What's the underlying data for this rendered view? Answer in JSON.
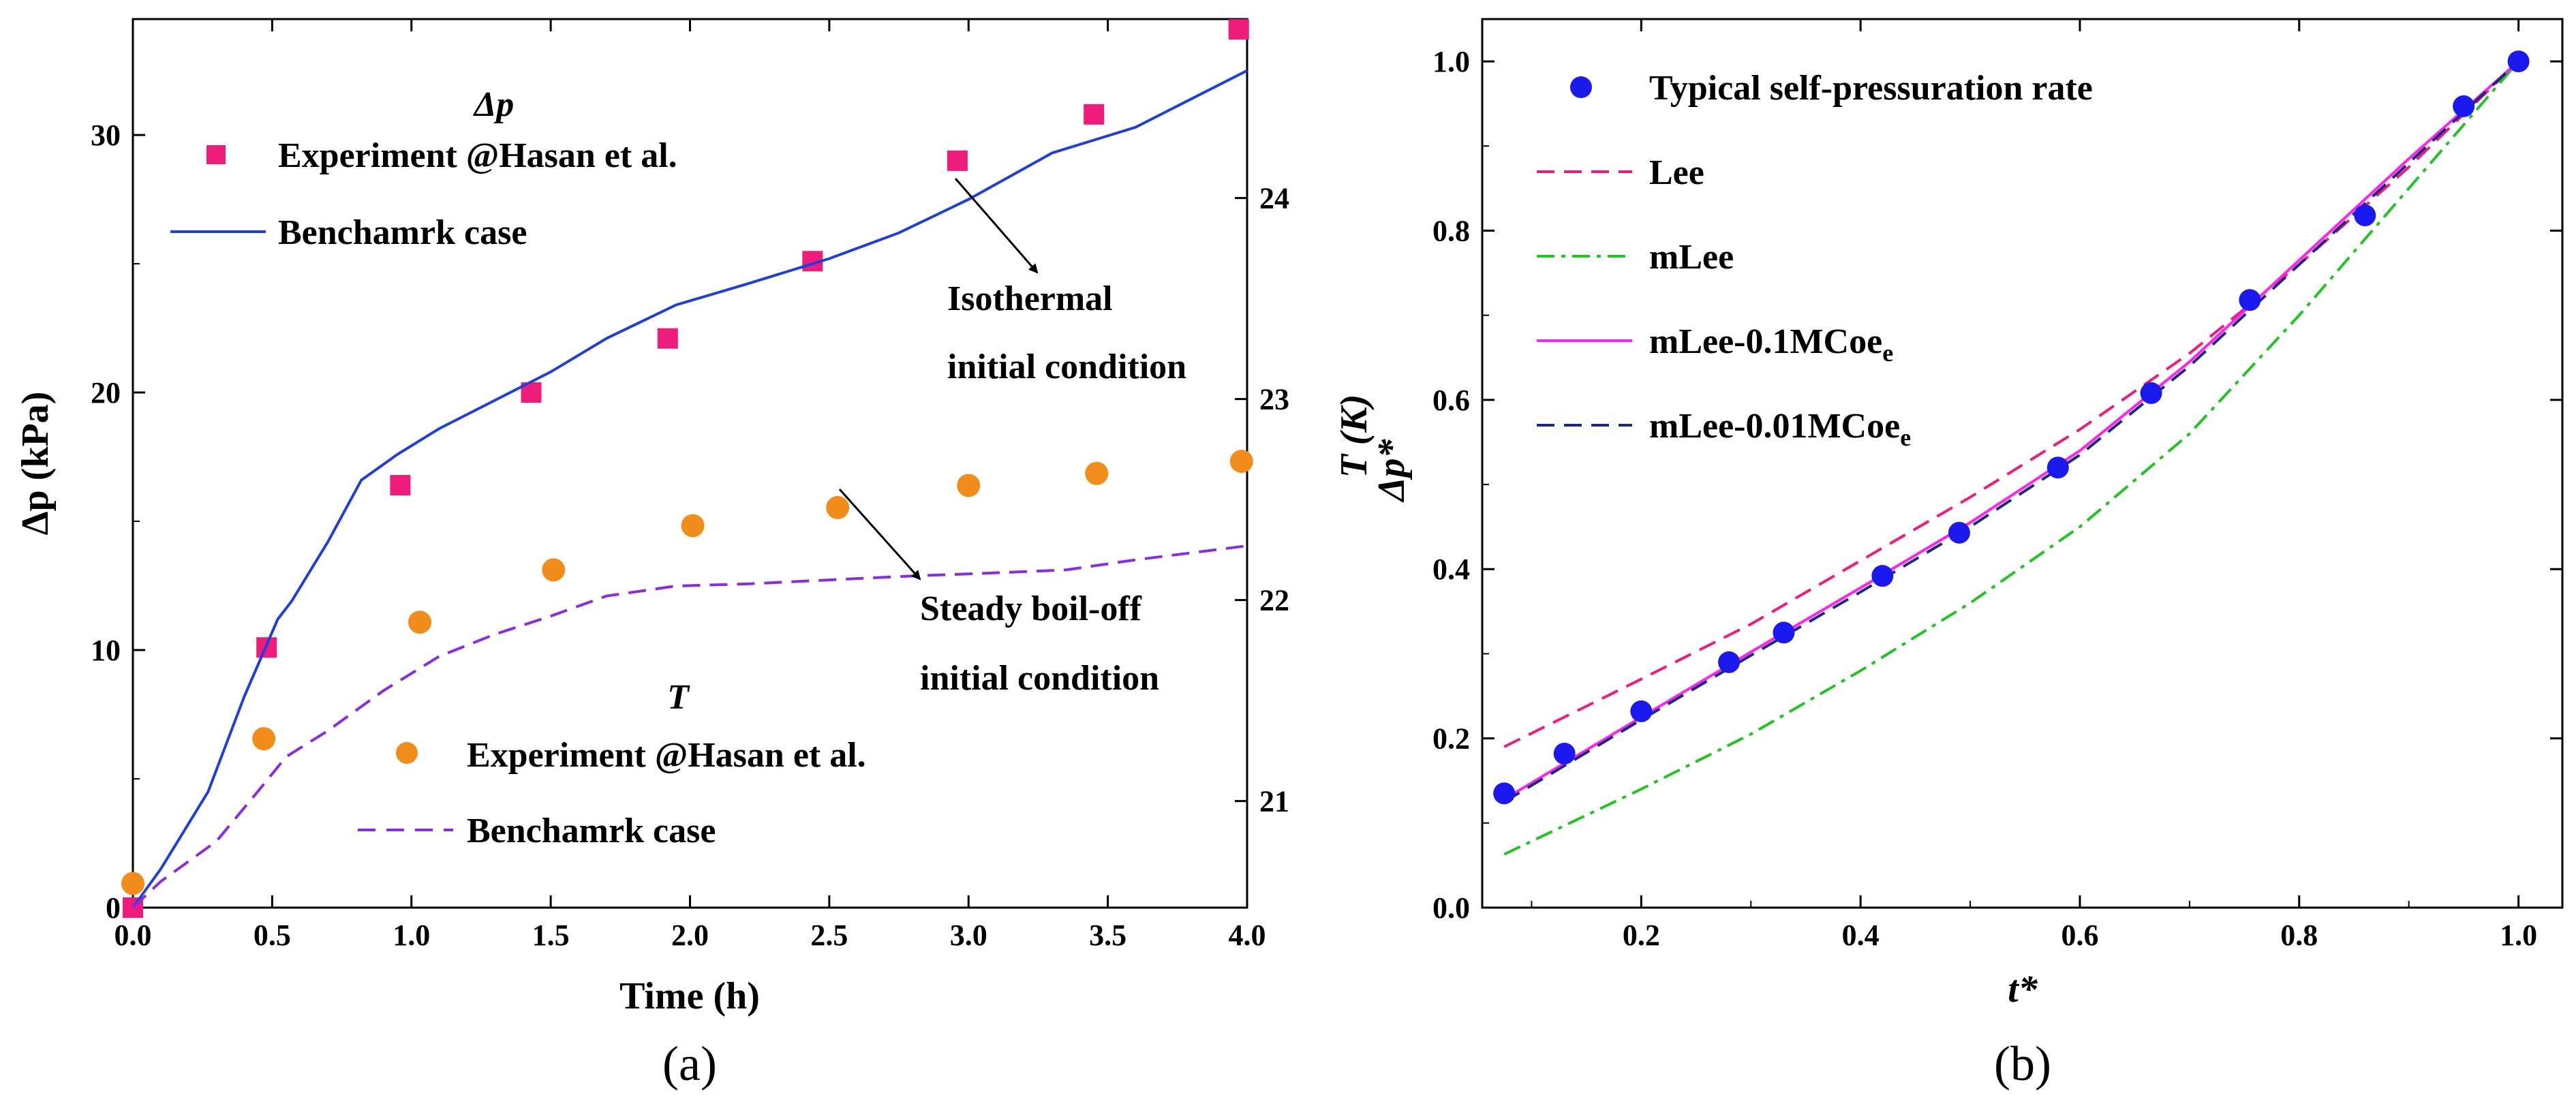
{
  "chart_data": [
    {
      "type": "line",
      "panel_label": "(a)",
      "xlabel": "Time (h)",
      "ylabel": "Δp (kPa)",
      "y2label": "T (K)",
      "xlim": [
        0,
        4
      ],
      "ylim": [
        0,
        34.5
      ],
      "y2lim": [
        20.47,
        24.89
      ],
      "xticks": [
        "0.0",
        "0.5",
        "1.0",
        "1.5",
        "2.0",
        "2.5",
        "3.0",
        "3.5",
        "4.0"
      ],
      "yticks": [
        "0",
        "10",
        "20",
        "30"
      ],
      "y2ticks": [
        "21",
        "22",
        "23",
        "24"
      ],
      "legend_groups": [
        {
          "heading": "Δp",
          "heading_italic": true
        },
        {
          "heading": "T",
          "heading_italic": true
        }
      ],
      "series": [
        {
          "name": "Experiment @Hasan et al.",
          "kind": "scatter",
          "marker": "square",
          "color": "#ee1c7b",
          "axis": "left",
          "x": [
            0.0,
            0.48,
            0.96,
            1.43,
            1.92,
            2.44,
            2.96,
            3.45,
            3.97
          ],
          "y": [
            0.0,
            10.1,
            16.4,
            20.0,
            22.1,
            25.1,
            29.0,
            30.8,
            34.1
          ]
        },
        {
          "name": "Benchamrk case",
          "kind": "line",
          "dash": "solid",
          "color": "#1f3fd9",
          "axis": "left",
          "x": [
            0.0,
            0.1,
            0.27,
            0.4,
            0.52,
            0.57,
            0.7,
            0.82,
            0.95,
            1.1,
            1.3,
            1.5,
            1.7,
            1.95,
            2.2,
            2.5,
            2.75,
            3.0,
            3.3,
            3.6,
            4.0
          ],
          "y": [
            0.0,
            1.5,
            4.5,
            8.2,
            11.2,
            11.9,
            14.2,
            16.6,
            17.6,
            18.6,
            19.7,
            20.8,
            22.1,
            23.4,
            24.2,
            25.2,
            26.2,
            27.5,
            29.3,
            30.3,
            32.5
          ]
        },
        {
          "name": "Experiment @Hasan et al.",
          "kind": "scatter",
          "marker": "circle",
          "color": "#f08d1b",
          "axis": "right",
          "x": [
            0.0,
            0.47,
            1.03,
            1.51,
            2.01,
            2.53,
            3.0,
            3.46,
            3.98
          ],
          "y": [
            20.59,
            21.31,
            21.89,
            22.15,
            22.37,
            22.46,
            22.57,
            22.63,
            22.69
          ]
        },
        {
          "name": "Benchamrk case",
          "kind": "line",
          "dash": "dashed",
          "color": "#8a2be2",
          "axis": "right",
          "x": [
            0.0,
            0.1,
            0.3,
            0.45,
            0.55,
            0.7,
            0.9,
            1.1,
            1.3,
            1.5,
            1.7,
            1.95,
            2.2,
            2.5,
            2.8,
            3.0,
            3.35,
            3.6,
            4.0
          ],
          "y": [
            20.47,
            20.6,
            20.8,
            21.05,
            21.22,
            21.35,
            21.55,
            21.72,
            21.83,
            21.92,
            22.02,
            22.07,
            22.08,
            22.1,
            22.12,
            22.13,
            22.15,
            22.2,
            22.27
          ]
        }
      ],
      "annotations": [
        {
          "text": [
            "Isothermal",
            "initial condition"
          ]
        },
        {
          "text": [
            "Steady boil-off",
            "initial condition"
          ]
        }
      ]
    },
    {
      "type": "line",
      "panel_label": "(b)",
      "xlabel": "t*",
      "ylabel": "Δp*",
      "xlim": [
        0.055,
        1.04
      ],
      "ylim": [
        0,
        1.05
      ],
      "xticks": [
        "0.2",
        "0.4",
        "0.6",
        "0.8",
        "1.0"
      ],
      "yticks": [
        "0.0",
        "0.2",
        "0.4",
        "0.6",
        "0.8",
        "1.0"
      ],
      "series": [
        {
          "name": "Typical self-pressuration rate",
          "kind": "scatter",
          "marker": "circle",
          "color": "#1a1aee",
          "x": [
            0.075,
            0.13,
            0.2,
            0.28,
            0.33,
            0.42,
            0.49,
            0.58,
            0.665,
            0.755,
            0.86,
            0.95,
            1.0
          ],
          "y": [
            0.135,
            0.182,
            0.232,
            0.29,
            0.325,
            0.392,
            0.443,
            0.52,
            0.608,
            0.718,
            0.818,
            0.947,
            1.0
          ]
        },
        {
          "name": "Lee",
          "kind": "line",
          "dash": "dashed",
          "color": "#ee1c7b",
          "x": [
            0.075,
            0.2,
            0.3,
            0.4,
            0.5,
            0.6,
            0.7,
            0.8,
            0.9,
            1.0
          ],
          "y": [
            0.19,
            0.27,
            0.335,
            0.41,
            0.485,
            0.565,
            0.655,
            0.76,
            0.875,
            1.0
          ]
        },
        {
          "name": "mLee",
          "kind": "line",
          "dash": "dashdot",
          "color": "#22c322",
          "x": [
            0.075,
            0.2,
            0.3,
            0.4,
            0.5,
            0.6,
            0.7,
            0.8,
            0.9,
            1.0
          ],
          "y": [
            0.063,
            0.14,
            0.205,
            0.28,
            0.36,
            0.45,
            0.56,
            0.7,
            0.85,
            1.0
          ]
        },
        {
          "name": "mLee-0.1MCoe",
          "subscript": "e",
          "kind": "line",
          "dash": "solid",
          "color": "#ff22ee",
          "x": [
            0.075,
            0.2,
            0.3,
            0.4,
            0.5,
            0.6,
            0.7,
            0.8,
            0.9,
            1.0
          ],
          "y": [
            0.128,
            0.225,
            0.302,
            0.378,
            0.455,
            0.54,
            0.645,
            0.765,
            0.885,
            1.0
          ]
        },
        {
          "name": "mLee-0.01MCoe",
          "subscript": "e",
          "kind": "line",
          "dash": "dashed",
          "color": "#1a2a80",
          "x": [
            0.075,
            0.2,
            0.3,
            0.4,
            0.5,
            0.6,
            0.7,
            0.8,
            0.9,
            1.0
          ],
          "y": [
            0.125,
            0.222,
            0.298,
            0.373,
            0.45,
            0.535,
            0.64,
            0.76,
            0.88,
            1.0
          ]
        }
      ]
    }
  ]
}
